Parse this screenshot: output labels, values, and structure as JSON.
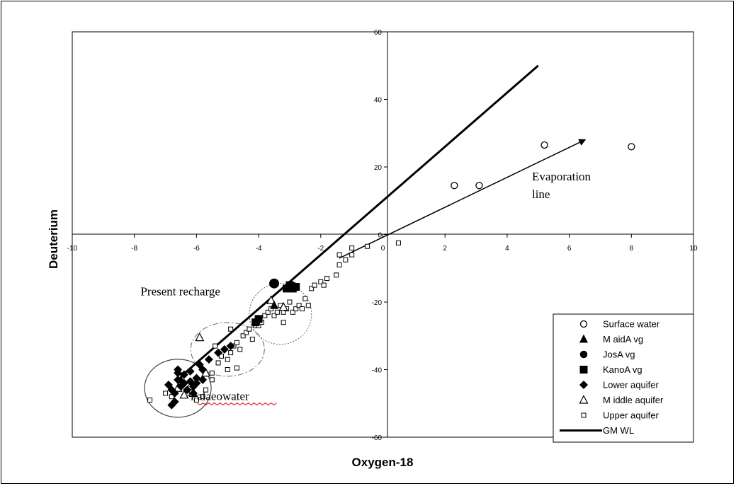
{
  "chart_data": {
    "type": "scatter",
    "xlabel": "Oxygen-18",
    "ylabel": "Deuterium",
    "xlim": [
      -10,
      10
    ],
    "ylim": [
      -60,
      60
    ],
    "xticks": [
      "-10",
      "-8",
      "-6",
      "-4",
      "-2",
      "0",
      "2",
      "4",
      "6",
      "8",
      "10"
    ],
    "yticks": [
      "60",
      "40",
      "20",
      "0",
      "-20",
      "-40",
      "-60"
    ],
    "grid": false,
    "legend_position": "bottom-right",
    "series": [
      {
        "name": "Surface water",
        "marker": "open-circle",
        "points": [
          [
            2.3,
            14.5
          ],
          [
            3.1,
            14.5
          ],
          [
            5.2,
            26.5
          ],
          [
            8.0,
            26.0
          ]
        ]
      },
      {
        "name": "M aidA vg",
        "marker": "filled-triangle",
        "points": [
          [
            -3.5,
            -21
          ],
          [
            -6.5,
            -43
          ]
        ]
      },
      {
        "name": "JosA vg",
        "marker": "filled-circle",
        "points": [
          [
            -3.5,
            -14.5
          ],
          [
            -2.9,
            -15.5
          ]
        ]
      },
      {
        "name": "KanoA vg",
        "marker": "filled-square",
        "points": [
          [
            -3.1,
            -16
          ],
          [
            -2.9,
            -16
          ],
          [
            -2.8,
            -15.5
          ],
          [
            -3.0,
            -15
          ],
          [
            -4.0,
            -25
          ],
          [
            -4.1,
            -26
          ]
        ]
      },
      {
        "name": "Lower aquifer",
        "marker": "filled-diamond",
        "points": [
          [
            -6.9,
            -44.5
          ],
          [
            -6.8,
            -46
          ],
          [
            -6.7,
            -47
          ],
          [
            -6.6,
            -43
          ],
          [
            -6.5,
            -45
          ],
          [
            -6.4,
            -44
          ],
          [
            -6.3,
            -46
          ],
          [
            -6.2,
            -43.5
          ],
          [
            -6.1,
            -45
          ],
          [
            -6.0,
            -44
          ],
          [
            -6.7,
            -49.5
          ],
          [
            -6.8,
            -50.5
          ],
          [
            -6.6,
            -41
          ],
          [
            -6.4,
            -41.5
          ],
          [
            -6.2,
            -40.5
          ],
          [
            -6.0,
            -42.5
          ],
          [
            -5.8,
            -40
          ],
          [
            -5.9,
            -38.5
          ],
          [
            -5.6,
            -37
          ],
          [
            -5.3,
            -35
          ],
          [
            -5.1,
            -34
          ],
          [
            -4.9,
            -33
          ],
          [
            -6.6,
            -40
          ],
          [
            -5.8,
            -43
          ],
          [
            -6.1,
            -47
          ]
        ]
      },
      {
        "name": "M iddle aquifer",
        "marker": "open-triangle",
        "points": [
          [
            -5.9,
            -30.5
          ],
          [
            -6.2,
            -45
          ],
          [
            -6.4,
            -47.5
          ],
          [
            -6.1,
            -47
          ],
          [
            -6.6,
            -45.5
          ],
          [
            -5.7,
            -41
          ],
          [
            -3.6,
            -19.5
          ],
          [
            -3.2,
            -21.5
          ]
        ]
      },
      {
        "name": "Upper aquifer",
        "marker": "open-square",
        "points": [
          [
            -7.5,
            -49
          ],
          [
            -7.0,
            -47
          ],
          [
            -6.8,
            -48
          ],
          [
            -6.5,
            -44
          ],
          [
            -6.3,
            -47
          ],
          [
            -6.0,
            -49
          ],
          [
            -5.8,
            -48
          ],
          [
            -5.7,
            -46
          ],
          [
            -5.5,
            -41
          ],
          [
            -5.3,
            -38
          ],
          [
            -5.2,
            -36
          ],
          [
            -5.0,
            -40
          ],
          [
            -4.9,
            -35
          ],
          [
            -4.8,
            -33
          ],
          [
            -4.7,
            -32
          ],
          [
            -4.6,
            -34
          ],
          [
            -4.5,
            -30
          ],
          [
            -4.4,
            -29
          ],
          [
            -4.3,
            -28
          ],
          [
            -4.2,
            -31
          ],
          [
            -4.1,
            -27
          ],
          [
            -4.0,
            -27
          ],
          [
            -3.9,
            -26
          ],
          [
            -3.8,
            -24
          ],
          [
            -3.7,
            -23
          ],
          [
            -3.6,
            -22
          ],
          [
            -3.5,
            -24
          ],
          [
            -3.4,
            -23
          ],
          [
            -3.3,
            -21
          ],
          [
            -3.2,
            -23
          ],
          [
            -3.1,
            -22
          ],
          [
            -3.0,
            -20
          ],
          [
            -2.9,
            -23
          ],
          [
            -2.8,
            -22
          ],
          [
            -2.7,
            -21
          ],
          [
            -2.6,
            -22
          ],
          [
            -2.5,
            -19
          ],
          [
            -2.3,
            -16
          ],
          [
            -2.2,
            -15
          ],
          [
            -2.0,
            -14
          ],
          [
            -1.9,
            -15
          ],
          [
            -1.8,
            -13
          ],
          [
            -1.5,
            -12
          ],
          [
            -1.4,
            -9
          ],
          [
            -1.4,
            -6
          ],
          [
            -1.2,
            -7.5
          ],
          [
            -1.0,
            -6
          ],
          [
            -1.0,
            -4
          ],
          [
            -0.5,
            -3.5
          ],
          [
            0.5,
            -2.5
          ],
          [
            -5.0,
            -37
          ],
          [
            -5.5,
            -43
          ],
          [
            -4.7,
            -39.5
          ],
          [
            -4.9,
            -28
          ],
          [
            -5.4,
            -33
          ],
          [
            -3.2,
            -26
          ],
          [
            -2.4,
            -21
          ]
        ]
      }
    ],
    "lines": [
      {
        "name": "GM WL",
        "style": "thick-solid",
        "points": [
          [
            -6.5,
            -42
          ],
          [
            5.0,
            50
          ]
        ]
      },
      {
        "name": "",
        "style": "arrow",
        "points": [
          [
            -1.4,
            -7
          ],
          [
            6.5,
            28
          ]
        ]
      }
    ],
    "annotations": [
      {
        "text": "Present recharge",
        "x": -7.8,
        "y": -18
      },
      {
        "text": "Evaporation line",
        "x": 4.8,
        "y": 16
      },
      {
        "text": "Palaeowater",
        "x": -6.2,
        "y": -49
      }
    ]
  },
  "legend": {
    "items": [
      {
        "label": "Surface water",
        "marker": "open-circle"
      },
      {
        "label": "M aidA vg",
        "marker": "filled-triangle"
      },
      {
        "label": "JosA vg",
        "marker": "filled-circle"
      },
      {
        "label": "KanoA vg",
        "marker": "filled-square"
      },
      {
        "label": "Lower aquifer",
        "marker": "filled-diamond"
      },
      {
        "label": "M iddle aquifer",
        "marker": "open-triangle"
      },
      {
        "label": "Upper aquifer",
        "marker": "open-square"
      },
      {
        "label": "GM WL",
        "marker": "line"
      }
    ]
  },
  "colors": {
    "ink": "#000000",
    "background": "#ffffff"
  }
}
